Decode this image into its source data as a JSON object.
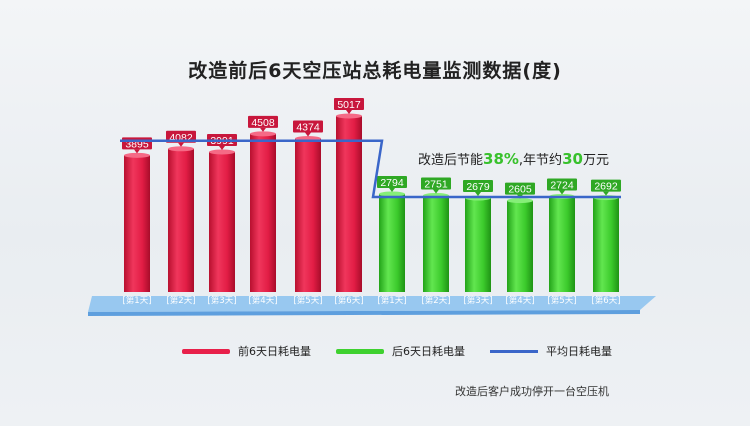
{
  "title": "改造前后6天空压站总耗电量监测数据(度)",
  "saving_note": {
    "prefix": "改造后节能",
    "percent": "38%",
    "middle": ",年节约",
    "amount": "30",
    "suffix": "万元"
  },
  "footnote": "改造后客户成功停开一台空压机",
  "legend": {
    "before": "前6天日耗电量",
    "after": "后6天日耗电量",
    "average": "平均日耗电量"
  },
  "colors": {
    "before_bar": "#e8204a",
    "after_bar": "#3ed12f",
    "average_line": "#3a66c9",
    "platform": "#8fc3f0"
  },
  "chart_data": {
    "type": "bar",
    "title": "改造前后6天空压站总耗电量监测数据(度)",
    "categories": [
      "第1天",
      "第2天",
      "第3天",
      "第4天",
      "第5天",
      "第6天",
      "第1天",
      "第2天",
      "第3天",
      "第4天",
      "第5天",
      "第6天"
    ],
    "series": [
      {
        "name": "前6天日耗电量",
        "values": [
          3895,
          4082,
          3991,
          4508,
          4374,
          5017,
          null,
          null,
          null,
          null,
          null,
          null
        ]
      },
      {
        "name": "后6天日耗电量",
        "values": [
          null,
          null,
          null,
          null,
          null,
          null,
          2794,
          2751,
          2679,
          2605,
          2724,
          2692
        ]
      }
    ],
    "average_line": {
      "name": "平均日耗电量",
      "before_value": 4311,
      "after_value": 2707
    },
    "ylim": [
      0,
      5400
    ],
    "grid": false,
    "legend_position": "bottom"
  }
}
